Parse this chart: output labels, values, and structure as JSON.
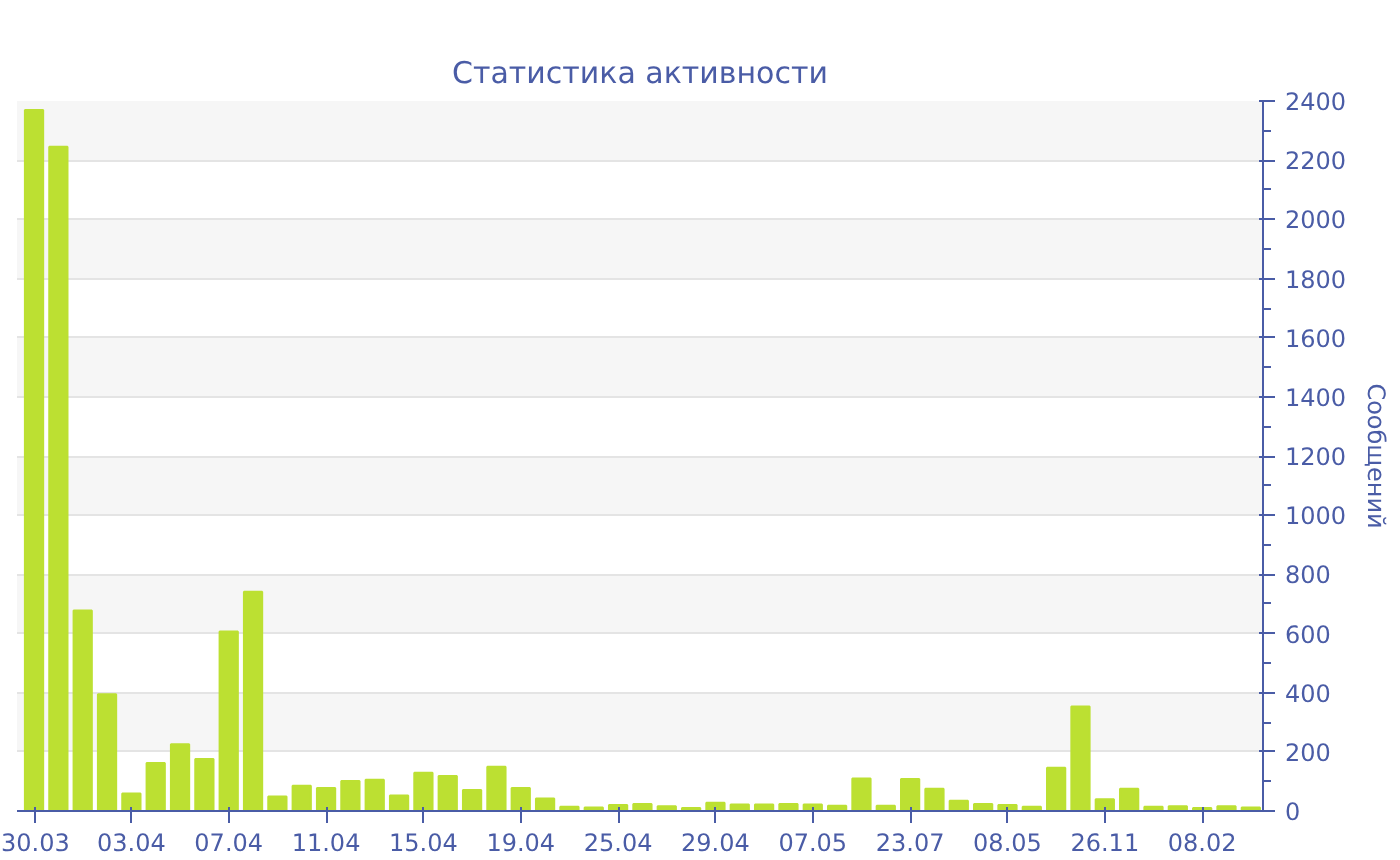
{
  "chart_data": {
    "type": "bar",
    "title": "Статистика активности",
    "ylabel": "Сообщений",
    "categories": [
      "30.03",
      null,
      null,
      null,
      "03.04",
      null,
      null,
      null,
      "07.04",
      null,
      null,
      null,
      "11.04",
      null,
      null,
      null,
      "15.04",
      null,
      null,
      null,
      "19.04",
      null,
      null,
      null,
      "25.04",
      null,
      null,
      null,
      "29.04",
      null,
      null,
      null,
      "07.05",
      null,
      null,
      null,
      "23.07",
      null,
      null,
      null,
      "08.05",
      null,
      null,
      null,
      "26.11",
      null,
      null,
      null,
      "08.02",
      null,
      null
    ],
    "values": [
      2370,
      2245,
      678,
      395,
      59,
      162,
      226,
      176,
      607,
      741,
      49,
      85,
      78,
      101,
      106,
      52,
      129,
      118,
      71,
      150,
      78,
      42,
      14,
      12,
      20,
      24,
      16,
      10,
      28,
      22,
      22,
      24,
      22,
      18,
      110,
      18,
      108,
      75,
      35,
      24,
      20,
      14,
      146,
      353,
      40,
      75,
      14,
      16,
      10,
      16,
      12
    ],
    "color": "#bce032",
    "ylim": [
      0,
      2400
    ],
    "yticks": [
      0,
      200,
      400,
      600,
      800,
      1000,
      1200,
      1400,
      1600,
      1800,
      2000,
      2200,
      2400
    ],
    "grid": "y"
  }
}
